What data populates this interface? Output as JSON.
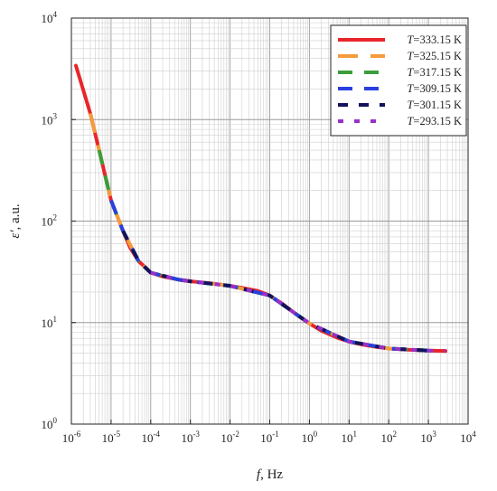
{
  "chart_data": {
    "type": "line",
    "x_scale": "log",
    "y_scale": "log",
    "xlim": [
      1e-06,
      10000
    ],
    "ylim": [
      1,
      10000
    ],
    "grid": true,
    "legend_position": "top-right",
    "xlabel": {
      "var": "f",
      "rest": ", Hz"
    },
    "ylabel": {
      "var": "ε'",
      "rest": ", a.u."
    },
    "x_ticks": [
      {
        "base": "10",
        "exp": "-6"
      },
      {
        "base": "10",
        "exp": "-5"
      },
      {
        "base": "10",
        "exp": "-4"
      },
      {
        "base": "10",
        "exp": "-3"
      },
      {
        "base": "10",
        "exp": "-2"
      },
      {
        "base": "10",
        "exp": "-1"
      },
      {
        "base": "10",
        "exp": "0"
      },
      {
        "base": "10",
        "exp": "1"
      },
      {
        "base": "10",
        "exp": "2"
      },
      {
        "base": "10",
        "exp": "3"
      },
      {
        "base": "10",
        "exp": "4"
      }
    ],
    "y_ticks": [
      {
        "base": "10",
        "exp": "0"
      },
      {
        "base": "10",
        "exp": "1"
      },
      {
        "base": "10",
        "exp": "2"
      },
      {
        "base": "10",
        "exp": "3"
      },
      {
        "base": "10",
        "exp": "4"
      }
    ],
    "series": [
      {
        "name": {
          "var": "T",
          "rest": "=333.15 K"
        },
        "color": "#e8262a",
        "style": "solid",
        "x": [
          1.3e-06,
          3e-06,
          5e-06,
          1e-05,
          2e-05,
          3e-05,
          5e-05,
          8e-05,
          0.0001,
          0.0002,
          0.0005,
          0.001,
          0.003,
          0.01,
          0.02,
          0.05,
          0.1,
          0.2,
          0.5,
          1,
          2,
          5,
          10,
          20,
          50,
          100,
          300,
          1000,
          2700
        ],
        "y": [
          3400,
          1150,
          500,
          160,
          80,
          55,
          40,
          34,
          31,
          28.5,
          26.5,
          25.5,
          24.5,
          23,
          22,
          20.5,
          18.5,
          15.5,
          11.8,
          9.8,
          8.3,
          7.1,
          6.5,
          6.1,
          5.75,
          5.55,
          5.4,
          5.3,
          5.25
        ]
      },
      {
        "name": {
          "var": "T",
          "rest": "=325.15 K"
        },
        "color": "#f49b3b",
        "style": "long-dash",
        "x": [
          3e-06,
          5e-06,
          1e-05,
          2e-05,
          5e-05,
          0.0001,
          0.0005,
          0.001,
          0.01,
          0.1,
          1,
          10,
          100,
          1000
        ],
        "y": [
          1150,
          500,
          160,
          80,
          40,
          31,
          26.5,
          25.5,
          23,
          18.5,
          9.8,
          6.5,
          5.55,
          5.3
        ]
      },
      {
        "name": {
          "var": "T",
          "rest": "=317.15 K"
        },
        "color": "#3a9e3a",
        "style": "dash",
        "x": [
          5e-06,
          1e-05,
          2e-05,
          5e-05,
          0.0001,
          0.0005,
          0.001,
          0.01,
          0.1,
          1,
          10,
          100,
          1000
        ],
        "y": [
          500,
          160,
          80,
          40,
          31,
          26.5,
          25.5,
          23,
          18.5,
          9.8,
          6.5,
          5.55,
          5.3
        ]
      },
      {
        "name": {
          "var": "T",
          "rest": "=309.15 K"
        },
        "color": "#2a3fe0",
        "style": "dash",
        "x": [
          1e-05,
          2e-05,
          5e-05,
          0.0001,
          0.0005,
          0.001,
          0.01,
          0.1,
          1,
          10,
          100,
          1000
        ],
        "y": [
          160,
          80,
          40,
          31,
          26.5,
          25.5,
          23,
          18.5,
          9.8,
          6.5,
          5.55,
          5.3
        ]
      },
      {
        "name": {
          "var": "T",
          "rest": "=301.15 K"
        },
        "color": "#12135a",
        "style": "short-dash",
        "x": [
          2e-05,
          5e-05,
          0.0001,
          0.0005,
          0.001,
          0.01,
          0.1,
          1,
          10,
          100,
          1000
        ],
        "y": [
          80,
          40,
          31,
          26.5,
          25.5,
          23,
          18.5,
          9.8,
          6.5,
          5.55,
          5.3
        ]
      },
      {
        "name": {
          "var": "T",
          "rest": "=293.15 K"
        },
        "color": "#9b30c9",
        "style": "dot",
        "x": [
          0.0001,
          0.0005,
          0.001,
          0.01,
          0.1,
          1,
          10,
          100,
          1000,
          2700
        ],
        "y": [
          31,
          26.5,
          25.5,
          23,
          18.5,
          9.8,
          6.5,
          5.55,
          5.3,
          5.25
        ]
      }
    ]
  }
}
